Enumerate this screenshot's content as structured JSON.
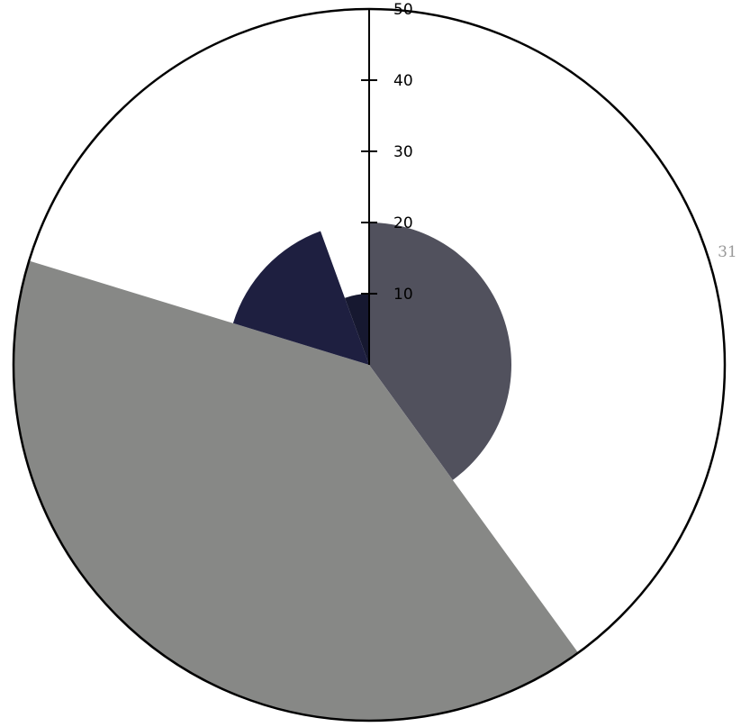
{
  "chart_data": {
    "type": "polar-area",
    "radial_axis": {
      "range": [
        0,
        50
      ],
      "ticks": [
        10,
        20,
        30,
        40,
        50
      ]
    },
    "slices": [
      {
        "value": 20,
        "start_angle": 0,
        "end_angle": 144,
        "color": "#51515d",
        "label": ""
      },
      {
        "value": 50,
        "start_angle": 144,
        "end_angle": 287,
        "color": "#878886",
        "label": ""
      },
      {
        "value": 20,
        "start_angle": 287,
        "end_angle": 340,
        "color": "#1e1f40",
        "label": ""
      },
      {
        "value": 10,
        "start_angle": 340,
        "end_angle": 360,
        "color": "#161830",
        "label": ""
      },
      {
        "value": 50,
        "start_angle": 0,
        "end_angle": 144,
        "color": "#ffffff",
        "label": "31"
      }
    ],
    "outline_color": "#000000"
  }
}
